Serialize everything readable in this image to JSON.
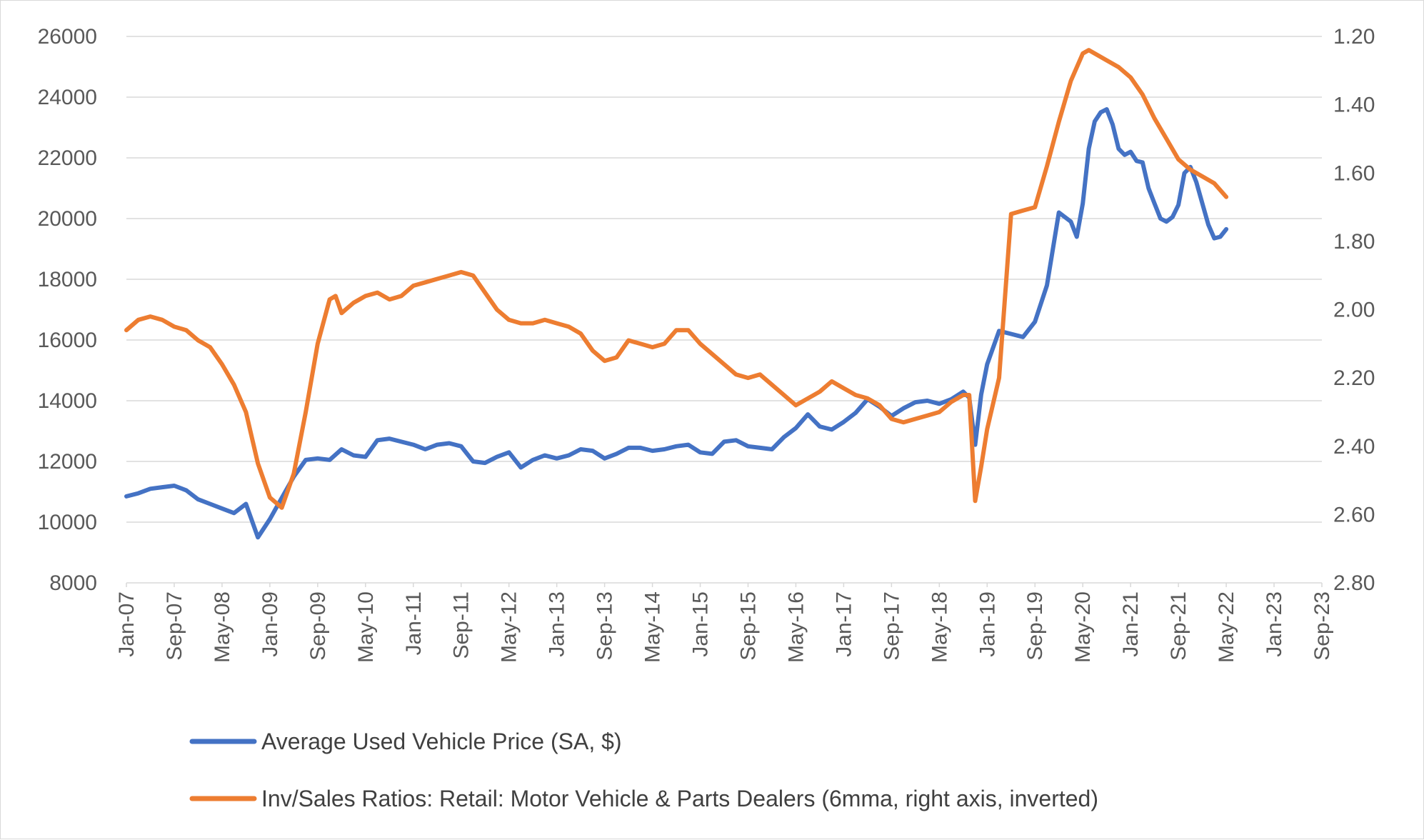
{
  "chart_data": {
    "type": "line",
    "title": "",
    "x_labels": [
      "Jan-07",
      "Sep-07",
      "May-08",
      "Jan-09",
      "Sep-09",
      "May-10",
      "Jan-11",
      "Sep-11",
      "May-12",
      "Jan-13",
      "Sep-13",
      "May-14",
      "Jan-15",
      "Sep-15",
      "May-16",
      "Jan-17",
      "Sep-17",
      "May-18",
      "Jan-19",
      "Sep-19",
      "May-20",
      "Jan-21",
      "Sep-21",
      "May-22",
      "Jan-23",
      "Sep-23"
    ],
    "y_left": {
      "min": 8000,
      "max": 26000,
      "step": 2000,
      "ticks": [
        "8000",
        "10000",
        "12000",
        "14000",
        "16000",
        "18000",
        "20000",
        "22000",
        "24000",
        "26000"
      ]
    },
    "y_right": {
      "min": 1.2,
      "max": 2.8,
      "inverted": true,
      "ticks": [
        "1.20",
        "1.40",
        "1.60",
        "1.80",
        "2.00",
        "2.20",
        "2.40",
        "2.60",
        "2.80"
      ]
    },
    "grid": true,
    "legend_position": "bottom",
    "series": [
      {
        "name": "Average Used Vehicle Price (SA, $)",
        "axis": "left",
        "color": "#4472C4",
        "points": [
          [
            0,
            10850
          ],
          [
            2,
            10950
          ],
          [
            4,
            11100
          ],
          [
            6,
            11150
          ],
          [
            8,
            11200
          ],
          [
            10,
            11050
          ],
          [
            12,
            10750
          ],
          [
            14,
            10600
          ],
          [
            16,
            10450
          ],
          [
            18,
            10300
          ],
          [
            20,
            10600
          ],
          [
            22,
            9500
          ],
          [
            24,
            10100
          ],
          [
            26,
            10800
          ],
          [
            28,
            11500
          ],
          [
            30,
            12050
          ],
          [
            32,
            12100
          ],
          [
            34,
            12050
          ],
          [
            36,
            12400
          ],
          [
            38,
            12200
          ],
          [
            40,
            12150
          ],
          [
            42,
            12700
          ],
          [
            44,
            12750
          ],
          [
            46,
            12650
          ],
          [
            48,
            12550
          ],
          [
            50,
            12400
          ],
          [
            52,
            12550
          ],
          [
            54,
            12600
          ],
          [
            56,
            12500
          ],
          [
            58,
            12000
          ],
          [
            60,
            11950
          ],
          [
            62,
            12150
          ],
          [
            64,
            12300
          ],
          [
            66,
            11800
          ],
          [
            68,
            12050
          ],
          [
            70,
            12200
          ],
          [
            72,
            12100
          ],
          [
            74,
            12200
          ],
          [
            76,
            12400
          ],
          [
            78,
            12350
          ],
          [
            80,
            12100
          ],
          [
            82,
            12250
          ],
          [
            84,
            12450
          ],
          [
            86,
            12450
          ],
          [
            88,
            12350
          ],
          [
            90,
            12400
          ],
          [
            92,
            12500
          ],
          [
            94,
            12550
          ],
          [
            96,
            12300
          ],
          [
            98,
            12250
          ],
          [
            100,
            12650
          ],
          [
            102,
            12700
          ],
          [
            104,
            12500
          ],
          [
            106,
            12450
          ],
          [
            108,
            12400
          ],
          [
            110,
            12800
          ],
          [
            112,
            13100
          ],
          [
            114,
            13550
          ],
          [
            116,
            13150
          ],
          [
            118,
            13050
          ],
          [
            120,
            13300
          ],
          [
            122,
            13600
          ],
          [
            124,
            14050
          ],
          [
            126,
            13800
          ],
          [
            128,
            13500
          ],
          [
            130,
            13750
          ],
          [
            132,
            13950
          ],
          [
            134,
            14000
          ],
          [
            136,
            13900
          ],
          [
            138,
            14050
          ],
          [
            140,
            14300
          ],
          [
            141,
            14100
          ],
          [
            142,
            12550
          ],
          [
            143,
            14200
          ],
          [
            144,
            15200
          ],
          [
            146,
            16300
          ],
          [
            148,
            16200
          ],
          [
            150,
            16100
          ],
          [
            152,
            16600
          ],
          [
            154,
            17800
          ],
          [
            156,
            20200
          ],
          [
            158,
            19900
          ],
          [
            159,
            19400
          ],
          [
            160,
            20500
          ],
          [
            161,
            22300
          ],
          [
            162,
            23200
          ],
          [
            163,
            23500
          ],
          [
            164,
            23600
          ],
          [
            165,
            23100
          ],
          [
            166,
            22300
          ],
          [
            167,
            22100
          ],
          [
            168,
            22200
          ],
          [
            169,
            21900
          ],
          [
            170,
            21850
          ],
          [
            171,
            21000
          ],
          [
            172,
            20500
          ],
          [
            173,
            20000
          ],
          [
            174,
            19900
          ],
          [
            175,
            20050
          ],
          [
            176,
            20450
          ],
          [
            177,
            21500
          ],
          [
            178,
            21700
          ],
          [
            179,
            21200
          ],
          [
            180,
            20500
          ],
          [
            181,
            19800
          ],
          [
            182,
            19350
          ],
          [
            183,
            19400
          ],
          [
            184,
            19650
          ]
        ]
      },
      {
        "name": "Inv/Sales Ratios: Retail: Motor Vehicle & Parts Dealers (6mma, right axis, inverted)",
        "axis": "right",
        "color": "#ED7D31",
        "points": [
          [
            0,
            2.06
          ],
          [
            2,
            2.03
          ],
          [
            4,
            2.02
          ],
          [
            6,
            2.03
          ],
          [
            8,
            2.05
          ],
          [
            10,
            2.06
          ],
          [
            12,
            2.09
          ],
          [
            14,
            2.11
          ],
          [
            16,
            2.16
          ],
          [
            18,
            2.22
          ],
          [
            20,
            2.3
          ],
          [
            22,
            2.45
          ],
          [
            24,
            2.55
          ],
          [
            26,
            2.58
          ],
          [
            28,
            2.48
          ],
          [
            30,
            2.3
          ],
          [
            32,
            2.1
          ],
          [
            34,
            1.97
          ],
          [
            35,
            1.96
          ],
          [
            36,
            2.01
          ],
          [
            38,
            1.98
          ],
          [
            40,
            1.96
          ],
          [
            42,
            1.95
          ],
          [
            44,
            1.97
          ],
          [
            46,
            1.96
          ],
          [
            48,
            1.93
          ],
          [
            50,
            1.92
          ],
          [
            52,
            1.91
          ],
          [
            54,
            1.9
          ],
          [
            56,
            1.89
          ],
          [
            58,
            1.9
          ],
          [
            60,
            1.95
          ],
          [
            62,
            2.0
          ],
          [
            64,
            2.03
          ],
          [
            66,
            2.04
          ],
          [
            68,
            2.04
          ],
          [
            70,
            2.03
          ],
          [
            72,
            2.04
          ],
          [
            74,
            2.05
          ],
          [
            76,
            2.07
          ],
          [
            78,
            2.12
          ],
          [
            80,
            2.15
          ],
          [
            82,
            2.14
          ],
          [
            84,
            2.09
          ],
          [
            86,
            2.1
          ],
          [
            88,
            2.11
          ],
          [
            90,
            2.1
          ],
          [
            92,
            2.06
          ],
          [
            94,
            2.06
          ],
          [
            96,
            2.1
          ],
          [
            98,
            2.13
          ],
          [
            100,
            2.16
          ],
          [
            102,
            2.19
          ],
          [
            104,
            2.2
          ],
          [
            106,
            2.19
          ],
          [
            108,
            2.22
          ],
          [
            110,
            2.25
          ],
          [
            112,
            2.28
          ],
          [
            114,
            2.26
          ],
          [
            116,
            2.24
          ],
          [
            118,
            2.21
          ],
          [
            120,
            2.23
          ],
          [
            122,
            2.25
          ],
          [
            124,
            2.26
          ],
          [
            126,
            2.28
          ],
          [
            128,
            2.32
          ],
          [
            130,
            2.33
          ],
          [
            132,
            2.32
          ],
          [
            134,
            2.31
          ],
          [
            136,
            2.3
          ],
          [
            138,
            2.27
          ],
          [
            140,
            2.25
          ],
          [
            141,
            2.25
          ],
          [
            142,
            2.56
          ],
          [
            143,
            2.46
          ],
          [
            144,
            2.35
          ],
          [
            146,
            2.2
          ],
          [
            148,
            1.72
          ],
          [
            150,
            1.71
          ],
          [
            152,
            1.7
          ],
          [
            154,
            1.58
          ],
          [
            156,
            1.45
          ],
          [
            158,
            1.33
          ],
          [
            160,
            1.25
          ],
          [
            161,
            1.24
          ],
          [
            162,
            1.25
          ],
          [
            164,
            1.27
          ],
          [
            166,
            1.29
          ],
          [
            168,
            1.32
          ],
          [
            170,
            1.37
          ],
          [
            172,
            1.44
          ],
          [
            174,
            1.5
          ],
          [
            176,
            1.56
          ],
          [
            178,
            1.59
          ],
          [
            180,
            1.61
          ],
          [
            182,
            1.63
          ],
          [
            184,
            1.67
          ]
        ]
      }
    ]
  }
}
